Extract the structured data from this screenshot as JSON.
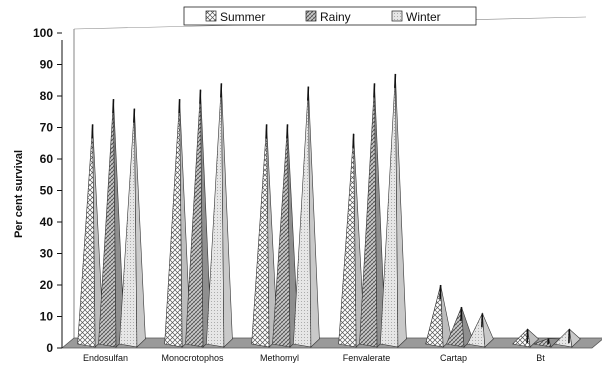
{
  "chart_data": {
    "type": "bar",
    "title": "",
    "xlabel": "",
    "ylabel": "Per cent survival",
    "ylim": [
      0,
      100
    ],
    "yticks": [
      0,
      10,
      20,
      30,
      40,
      50,
      60,
      70,
      80,
      90,
      100
    ],
    "categories": [
      "Endosulfan",
      "Monocrotophos",
      "Methomyl",
      "Fenvalerate",
      "Cartap",
      "Bt"
    ],
    "series": [
      {
        "name": "Summer",
        "values": [
          71,
          79,
          71,
          68,
          20,
          6
        ]
      },
      {
        "name": "Rainy",
        "values": [
          79,
          82,
          71,
          84,
          13,
          3
        ]
      },
      {
        "name": "Winter",
        "values": [
          76,
          84,
          83,
          87,
          11,
          6
        ]
      }
    ],
    "legend_position": "top",
    "grid": false,
    "style": "3d-pyramid"
  }
}
